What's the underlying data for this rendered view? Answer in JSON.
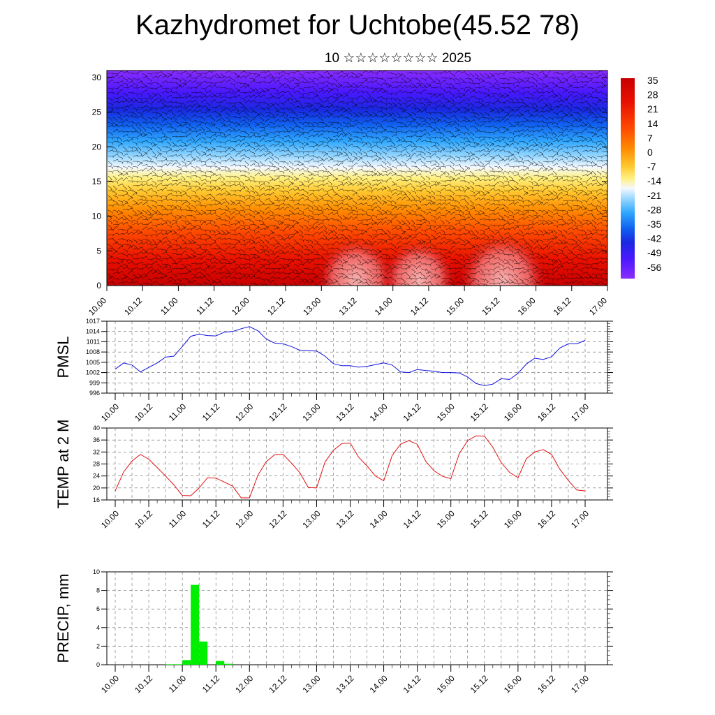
{
  "title": "Kazhydromet for Uchtobe(45.52 78)",
  "subtitle": "10 ☆☆☆☆☆☆☆☆ 2025",
  "chart_data": [
    {
      "type": "heatmap",
      "name": "",
      "x_ticks": [
        "10.00",
        "10.12",
        "11.00",
        "11.12",
        "12.00",
        "12.12",
        "13.00",
        "13.12",
        "14.00",
        "14.12",
        "15.00",
        "15.12",
        "16.00",
        "16.12",
        "17.00"
      ],
      "y_ticks": [
        0,
        5,
        10,
        15,
        20,
        25,
        30
      ],
      "ylim": [
        0,
        31
      ],
      "colorbar": {
        "labels": [
          "35",
          "28",
          "21",
          "14",
          "7",
          "0",
          "-7",
          "-14",
          "-21",
          "-28",
          "-35",
          "-42",
          "-49",
          "-56"
        ],
        "colors": [
          "#ff4040",
          "#e00000",
          "#ff3a00",
          "#ff7000",
          "#ffa000",
          "#ffd040",
          "#fff070",
          "#ffffff",
          "#a0e0ff",
          "#30b0ff",
          "#1080ff",
          "#2040ff",
          "#4020ff",
          "#8a20ff"
        ]
      },
      "overlay": "wind barbs",
      "grid": false
    },
    {
      "type": "line",
      "ylabel": "PMSL",
      "ylim": [
        996,
        1017
      ],
      "y_ticks": [
        996,
        999,
        1002,
        1005,
        1008,
        1011,
        1014,
        1017
      ],
      "x_ticks": [
        "10.00",
        "10.12",
        "11.00",
        "11.12",
        "12.00",
        "12.12",
        "13.00",
        "13.12",
        "14.00",
        "14.12",
        "15.00",
        "15.12",
        "16.00",
        "16.12",
        "17.00"
      ],
      "color": "#1010e0",
      "x": [
        0,
        3,
        6,
        9,
        12,
        15,
        18,
        21,
        24,
        27,
        30,
        33,
        36,
        39,
        42,
        45,
        48,
        51,
        54,
        57,
        60,
        63,
        66,
        69,
        72,
        75,
        78,
        81,
        84,
        87,
        90,
        93,
        96,
        99,
        102,
        105,
        108,
        111,
        114,
        117,
        120,
        123,
        126,
        129,
        132,
        135,
        138,
        141,
        144,
        147,
        150,
        153,
        156,
        159,
        162,
        165,
        168
      ],
      "values": [
        1003,
        1004.8,
        1004.2,
        1002.2,
        1003.5,
        1004.8,
        1006.5,
        1006.8,
        1009.6,
        1012.6,
        1013.2,
        1012.8,
        1012.7,
        1013.8,
        1014,
        1014.8,
        1015.4,
        1014.2,
        1011.8,
        1010.6,
        1010.4,
        1009.6,
        1008.5,
        1008.4,
        1008.3,
        1006.8,
        1004.6,
        1004,
        1004,
        1003.6,
        1003.8,
        1004.3,
        1004.8,
        1004.2,
        1002.2,
        1002,
        1002.9,
        1002.6,
        1002.4,
        1002,
        1002,
        1001.9,
        1000.7,
        998.8,
        998.2,
        998.6,
        1000.2,
        1000,
        1001.8,
        1004.5,
        1006.2,
        1005.8,
        1006.6,
        1009.2,
        1010.4,
        1010.4,
        1011.4
      ],
      "grid": true
    },
    {
      "type": "line",
      "ylabel": "TEMP at 2 M",
      "ylim": [
        16,
        40
      ],
      "y_ticks": [
        16,
        20,
        24,
        28,
        32,
        36,
        40
      ],
      "x_ticks": [
        "10.00",
        "10.12",
        "11.00",
        "11.12",
        "12.00",
        "12.12",
        "13.00",
        "13.12",
        "14.00",
        "14.12",
        "15.00",
        "15.12",
        "16.00",
        "16.12",
        "17.00"
      ],
      "color": "#e01010",
      "x": [
        0,
        3,
        6,
        9,
        12,
        15,
        18,
        21,
        24,
        27,
        30,
        33,
        36,
        39,
        42,
        45,
        48,
        51,
        54,
        57,
        60,
        63,
        66,
        69,
        72,
        75,
        78,
        81,
        84,
        87,
        90,
        93,
        96,
        99,
        102,
        105,
        108,
        111,
        114,
        117,
        120,
        123,
        126,
        129,
        132,
        135,
        138,
        141,
        144,
        147,
        150,
        153,
        156,
        159,
        162,
        165,
        168
      ],
      "values": [
        19,
        25.3,
        29,
        31.2,
        29.6,
        26.8,
        24,
        21,
        17.5,
        17.4,
        20,
        23.4,
        23.3,
        22,
        20.6,
        16.7,
        16.7,
        24.2,
        28.8,
        31.1,
        31.2,
        28.3,
        25.1,
        20.2,
        20,
        28.6,
        32.6,
        34.8,
        35,
        30.3,
        27.4,
        24,
        22.4,
        30.8,
        34.6,
        35.8,
        34.6,
        28.9,
        25.7,
        23.9,
        23.1,
        31.4,
        35.8,
        37.4,
        37.3,
        33.6,
        28.5,
        25.2,
        23.4,
        29.8,
        32,
        32.8,
        31.2,
        26.2,
        22.5,
        19.3,
        19
      ]
    },
    {
      "type": "bar",
      "ylabel": "PRECIP, mm",
      "ylim": [
        0,
        10
      ],
      "y_ticks": [
        0,
        2,
        4,
        6,
        8,
        10
      ],
      "x_ticks": [
        "10.00",
        "10.12",
        "11.00",
        "11.12",
        "12.00",
        "12.12",
        "13.00",
        "13.12",
        "14.00",
        "14.12",
        "15.00",
        "15.12",
        "16.00",
        "16.12",
        "17.00"
      ],
      "color": "#00ee00",
      "x": [
        18,
        21,
        24,
        27,
        30,
        36,
        39
      ],
      "values": [
        0.05,
        0.05,
        0.5,
        8.6,
        2.5,
        0.4,
        0.1
      ]
    }
  ]
}
